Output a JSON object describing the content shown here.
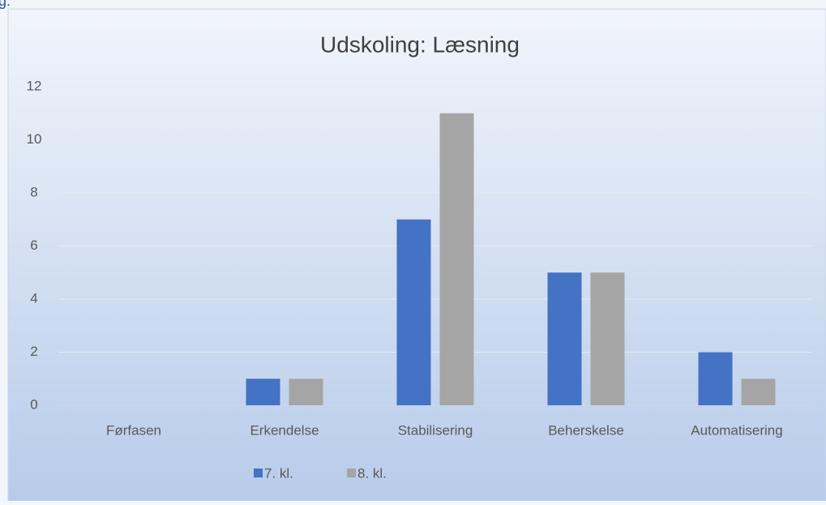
{
  "fragment_text": "g:",
  "chart_data": {
    "type": "bar",
    "title": "Udskoling: Læsning",
    "categories": [
      "Førfasen",
      "Erkendelse",
      "Stabilisering",
      "Beherskelse",
      "Automatisering"
    ],
    "series": [
      {
        "name": "7. kl.",
        "color": "#4472c4",
        "values": [
          0,
          1,
          7,
          5,
          2
        ]
      },
      {
        "name": "8. kl.",
        "color": "#a5a5a5",
        "values": [
          0,
          1,
          11,
          5,
          1
        ]
      }
    ],
    "ylim": [
      0,
      12
    ],
    "yticks": [
      0,
      2,
      4,
      6,
      8,
      10,
      12
    ],
    "grid": true,
    "legend": "bottom"
  }
}
